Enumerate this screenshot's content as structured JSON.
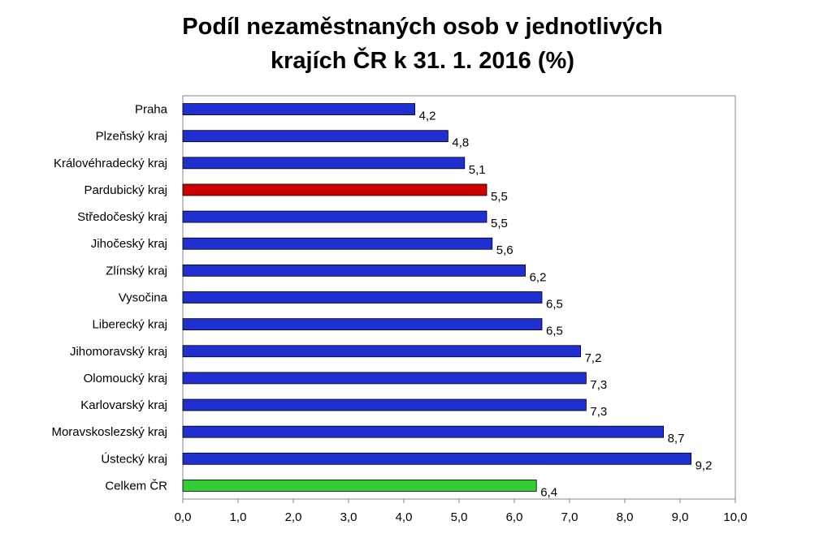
{
  "chart_data": {
    "type": "bar",
    "orientation": "horizontal",
    "title": [
      "Podíl nezaměstnaných osob v jednotlivých",
      "krajích ČR k 31. 1. 2016 (%)"
    ],
    "categories": [
      "Praha",
      "Plzeňský kraj",
      "Královéhradecký kraj",
      "Pardubický kraj",
      "Středočeský kraj",
      "Jihočeský kraj",
      "Zlínský kraj",
      "Vysočina",
      "Liberecký kraj",
      "Jihomoravský kraj",
      "Olomoucký kraj",
      "Karlovarský kraj",
      "Moravskoslezský kraj",
      "Ústecký kraj",
      "Celkem ČR"
    ],
    "values": [
      4.2,
      4.8,
      5.1,
      5.5,
      5.5,
      5.6,
      6.2,
      6.5,
      6.5,
      7.2,
      7.3,
      7.3,
      8.7,
      9.2,
      6.4
    ],
    "value_labels": [
      "4,2",
      "4,8",
      "5,1",
      "5,5",
      "5,5",
      "5,6",
      "6,2",
      "6,5",
      "6,5",
      "7,2",
      "7,3",
      "7,3",
      "8,7",
      "9,2",
      "6,4"
    ],
    "bar_colors": [
      "#1f2fd0",
      "#1f2fd0",
      "#1f2fd0",
      "#cc0000",
      "#1f2fd0",
      "#1f2fd0",
      "#1f2fd0",
      "#1f2fd0",
      "#1f2fd0",
      "#1f2fd0",
      "#1f2fd0",
      "#1f2fd0",
      "#1f2fd0",
      "#1f2fd0",
      "#33cc33"
    ],
    "xlim": [
      0,
      10
    ],
    "x_ticks": [
      0,
      1,
      2,
      3,
      4,
      5,
      6,
      7,
      8,
      9,
      10
    ],
    "x_tick_labels": [
      "0,0",
      "1,0",
      "2,0",
      "3,0",
      "4,0",
      "5,0",
      "6,0",
      "7,0",
      "8,0",
      "9,0",
      "10,0"
    ],
    "grid": false,
    "legend": "none"
  }
}
